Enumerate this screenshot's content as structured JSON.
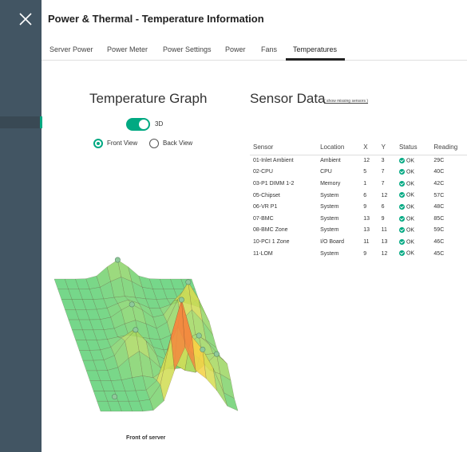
{
  "header": {
    "title": "Power & Thermal - Temperature Information",
    "tabs": [
      {
        "label": "Server Power"
      },
      {
        "label": "Power Meter"
      },
      {
        "label": "Power Settings"
      },
      {
        "label": "Power"
      },
      {
        "label": "Fans"
      },
      {
        "label": "Temperatures",
        "active": true
      }
    ]
  },
  "graph": {
    "title": "Temperature Graph",
    "toggle_label": "3D",
    "toggle_on": true,
    "views": [
      {
        "label": "Front View",
        "checked": true
      },
      {
        "label": "Back View",
        "checked": false
      }
    ],
    "footer_label": "Front of server"
  },
  "sensors": {
    "title": "Sensor Data",
    "link": "( show missing sensors )",
    "columns": [
      "Sensor",
      "Location",
      "X",
      "Y",
      "Status",
      "Reading"
    ],
    "rows": [
      {
        "sensor": "01-Inlet Ambient",
        "location": "Ambient",
        "x": "12",
        "y": "3",
        "status": "OK",
        "reading": "29C"
      },
      {
        "sensor": "02-CPU",
        "location": "CPU",
        "x": "5",
        "y": "7",
        "status": "OK",
        "reading": "40C"
      },
      {
        "sensor": "03-P1 DIMM 1-2",
        "location": "Memory",
        "x": "1",
        "y": "7",
        "status": "OK",
        "reading": "42C"
      },
      {
        "sensor": "05-Chipset",
        "location": "System",
        "x": "6",
        "y": "12",
        "status": "OK",
        "reading": "57C"
      },
      {
        "sensor": "06-VR P1",
        "location": "System",
        "x": "9",
        "y": "6",
        "status": "OK",
        "reading": "48C"
      },
      {
        "sensor": "07-BMC",
        "location": "System",
        "x": "13",
        "y": "9",
        "status": "OK",
        "reading": "85C"
      },
      {
        "sensor": "08-BMC Zone",
        "location": "System",
        "x": "13",
        "y": "11",
        "status": "OK",
        "reading": "59C"
      },
      {
        "sensor": "10-PCI 1 Zone",
        "location": "I/O Board",
        "x": "11",
        "y": "13",
        "status": "OK",
        "reading": "46C"
      },
      {
        "sensor": "11-LOM",
        "location": "System",
        "x": "9",
        "y": "12",
        "status": "OK",
        "reading": "45C"
      }
    ]
  },
  "colors": {
    "accent": "#01a982",
    "rail": "#425563",
    "surface_cool": "#63d17a",
    "surface_mid": "#f4e04a",
    "surface_hot": "#f04a38",
    "marker": "#8fc99a"
  },
  "icons": {
    "close": "close-icon",
    "status_ok": "check-circle-icon"
  }
}
